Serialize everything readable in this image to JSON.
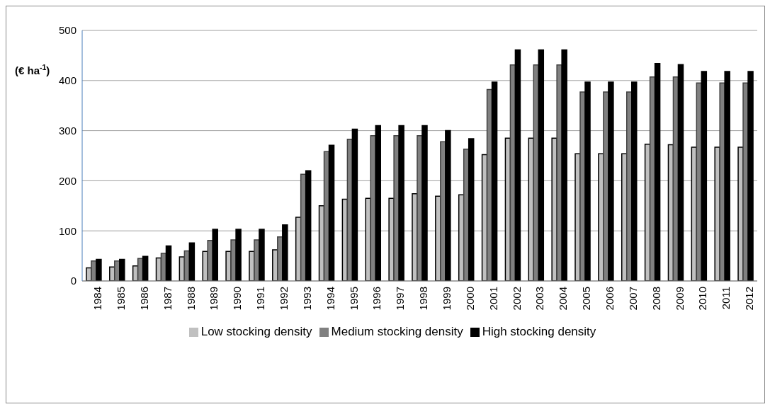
{
  "chart_data": {
    "type": "bar",
    "ylabel": "(€ ha$^{-1}$)",
    "categories": [
      "1984",
      "1985",
      "1986",
      "1987",
      "1988",
      "1989",
      "1990",
      "1991",
      "1992",
      "1993",
      "1994",
      "1995",
      "1996",
      "1997",
      "1998",
      "1999",
      "2000",
      "2001",
      "2002",
      "2003",
      "2004",
      "2005",
      "2006",
      "2007",
      "2008",
      "2009",
      "2010",
      "2011",
      "2012"
    ],
    "series": [
      {
        "name": "Low stocking density",
        "color": "#c0c0c0",
        "values": [
          26,
          28,
          30,
          46,
          48,
          59,
          59,
          59,
          62,
          127,
          150,
          163,
          165,
          165,
          174,
          169,
          172,
          252,
          285,
          285,
          285,
          254,
          254,
          254,
          273,
          272,
          267,
          267,
          267
        ]
      },
      {
        "name": "Medium stocking density",
        "color": "#808080",
        "values": [
          40,
          40,
          45,
          55,
          60,
          81,
          82,
          82,
          88,
          213,
          258,
          283,
          290,
          290,
          290,
          278,
          263,
          382,
          431,
          431,
          431,
          377,
          377,
          377,
          407,
          407,
          395,
          395,
          395
        ]
      },
      {
        "name": "High stocking density",
        "color": "#000000",
        "values": [
          43,
          43,
          49,
          70,
          76,
          103,
          103,
          103,
          112,
          220,
          271,
          303,
          310,
          310,
          310,
          300,
          284,
          397,
          461,
          461,
          461,
          397,
          397,
          397,
          434,
          432,
          418,
          418,
          418
        ]
      }
    ],
    "ylim": [
      0,
      500
    ],
    "yticks": [
      0,
      100,
      200,
      300,
      400,
      500
    ],
    "grid": "y",
    "legend": "bottom"
  }
}
